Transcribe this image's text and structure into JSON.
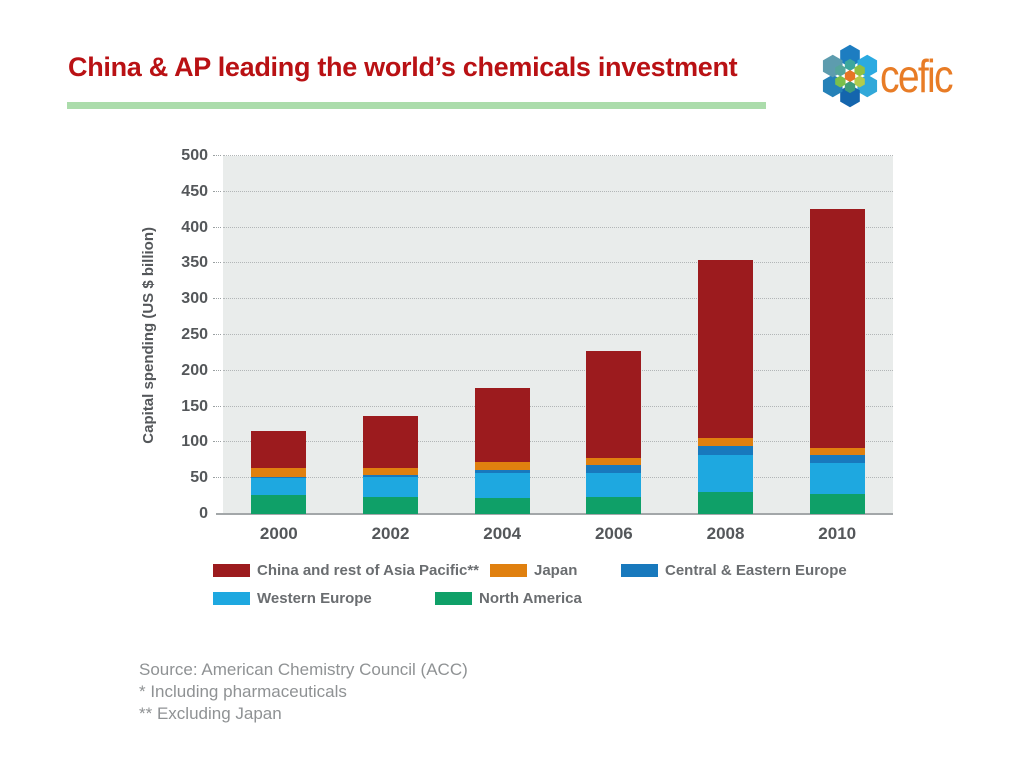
{
  "slide": {
    "title": "China & AP leading the world’s chemicals investment",
    "logo_text": "cefic",
    "source_lines": [
      "Source: American Chemistry Council (ACC)",
      "* Including pharmaceuticals",
      "** Excluding Japan"
    ]
  },
  "colors": {
    "title_red": "#b91114",
    "underline_green": "#abdcab",
    "plot_background": "#e9eceb",
    "axis_text": "#54575a",
    "legend_text": "#6a6d70",
    "source_text": "#8f9294",
    "logo_orange": "#e87c26"
  },
  "chart_data": {
    "type": "bar",
    "stacked": true,
    "title": "",
    "xlabel": "",
    "ylabel": "Capital spending (US $ billion)",
    "ylim": [
      0,
      500
    ],
    "ytick_step": 50,
    "grid": "dotted-horizontal",
    "categories": [
      "2000",
      "2002",
      "2004",
      "2006",
      "2008",
      "2010"
    ],
    "series": [
      {
        "name": "North America",
        "color": "#0fa068",
        "values": [
          27,
          24,
          22,
          24,
          31,
          28
        ]
      },
      {
        "name": "Western Europe",
        "color": "#1ea8e0",
        "values": [
          23,
          28,
          35,
          33,
          51,
          43
        ]
      },
      {
        "name": "Central & Eastern Europe",
        "color": "#1879bd",
        "values": [
          2,
          3,
          4,
          12,
          13,
          12
        ]
      },
      {
        "name": "Japan",
        "color": "#e0800f",
        "values": [
          13,
          10,
          12,
          9,
          11,
          9
        ]
      },
      {
        "name": "China and rest of Asia Pacific**",
        "color": "#9c1b1e",
        "values": [
          51,
          72,
          103,
          150,
          249,
          334
        ]
      }
    ],
    "totals": [
      116,
      137,
      176,
      228,
      355,
      426
    ],
    "legend_rows": [
      [
        "China and rest of Asia Pacific**",
        "Japan",
        "Central & Eastern Europe"
      ],
      [
        "Western Europe",
        "North America"
      ]
    ],
    "legend_position": "below"
  }
}
